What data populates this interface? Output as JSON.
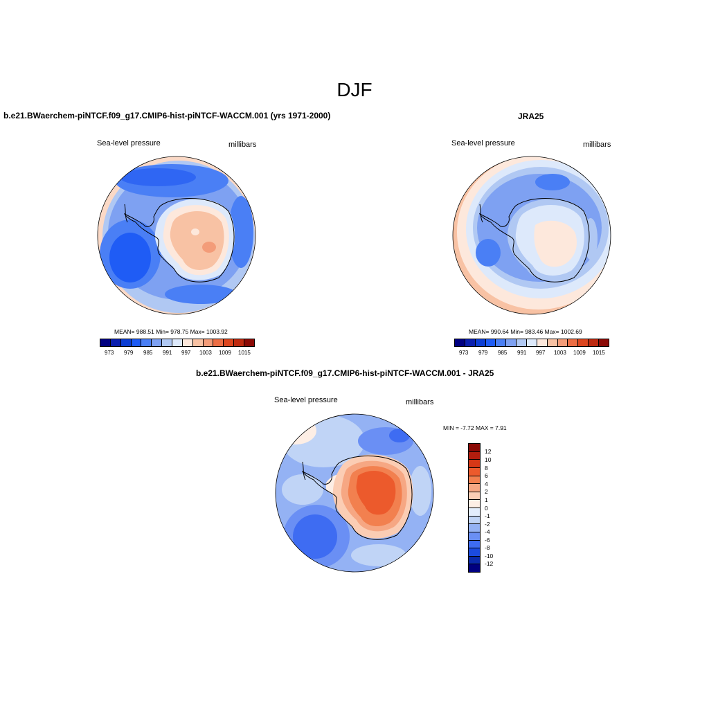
{
  "title": "DJF",
  "panels": {
    "model": {
      "title": "b.e21.BWaerchem-piNTCF.f09_g17.CMIP6-hist-piNTCF-WACCM.001 (yrs 1971-2000)",
      "variable": "Sea-level pressure",
      "units": "millibars",
      "stats": "MEAN= 988.51   Min= 978.75   Max= 1003.92"
    },
    "obs": {
      "title": "JRA25",
      "variable": "Sea-level pressure",
      "units": "millibars",
      "stats": "MEAN= 990.64   Min= 983.46   Max= 1002.69"
    },
    "diff": {
      "title": "b.e21.BWaerchem-piNTCF.f09_g17.CMIP6-hist-piNTCF-WACCM.001 - JRA25",
      "variable": "Sea-level pressure",
      "units": "millibars",
      "stats": "MIN =  -7.72 MAX =   7.91"
    }
  },
  "colorbars": {
    "absolute": {
      "ticks": [
        "973",
        "979",
        "985",
        "991",
        "997",
        "1003",
        "1009",
        "1015"
      ],
      "colors": [
        "#000080",
        "#0a1fae",
        "#0d3ed4",
        "#1f5cf5",
        "#4a7ff5",
        "#7ea1f2",
        "#b0c8f3",
        "#dde9fb",
        "#fde8dc",
        "#f8c2a4",
        "#f39c79",
        "#ec6e45",
        "#dc461f",
        "#be2a10",
        "#8b0a06"
      ]
    },
    "difference": {
      "ticks": [
        "12",
        "10",
        "8",
        "6",
        "4",
        "2",
        "1",
        "0",
        "-1",
        "-2",
        "-4",
        "-6",
        "-8",
        "-10",
        "-12"
      ],
      "colors": [
        "#8b0a06",
        "#b31d0e",
        "#d63816",
        "#ec5a2c",
        "#f2804f",
        "#f6a783",
        "#fbcdb4",
        "#fdeee5",
        "#e3edfc",
        "#c0d4f6",
        "#94b2f4",
        "#6a8ff4",
        "#3e6cf2",
        "#1b4be0",
        "#0a2aac",
        "#000080"
      ]
    }
  }
}
